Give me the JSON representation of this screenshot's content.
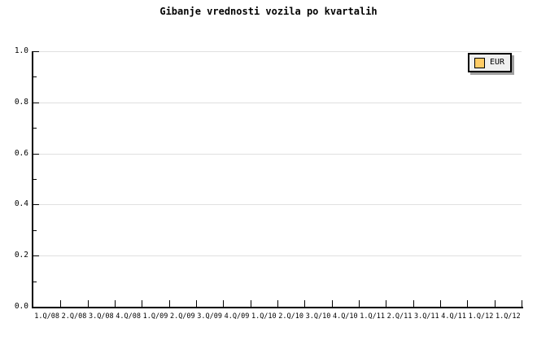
{
  "title": "Gibanje vrednosti vozila po kvartalih",
  "legend": {
    "label": "EUR",
    "swatch_color": "#ffcc66"
  },
  "colors": {
    "background": "#ffffff",
    "axis": "#000000",
    "grid": "#e0e0e0",
    "text": "#000000",
    "legend_bg": "#f0f0f0",
    "legend_border": "#000000",
    "legend_shadow": "#a0a0a0"
  },
  "chart_data": {
    "type": "line",
    "title": "Gibanje vrednosti vozila po kvartalih",
    "categories": [
      "1.Q/08",
      "2.Q/08",
      "3.Q/08",
      "4.Q/08",
      "1.Q/09",
      "2.Q/09",
      "3.Q/09",
      "4.Q/09",
      "1.Q/10",
      "2.Q/10",
      "3.Q/10",
      "4.Q/10",
      "1.Q/11",
      "2.Q/11",
      "3.Q/11",
      "4.Q/11",
      "1.Q/12",
      "1.Q/12"
    ],
    "series": [
      {
        "name": "EUR",
        "values": []
      }
    ],
    "xlabel": "",
    "ylabel": "",
    "ylim": [
      0.0,
      1.0
    ],
    "y_ticks": [
      0.0,
      0.2,
      0.4,
      0.6,
      0.8,
      1.0
    ],
    "y_minor_ticks": [
      0.1,
      0.3,
      0.5,
      0.7,
      0.9
    ],
    "grid": "horizontal-major-only",
    "legend_position": "top-right"
  }
}
